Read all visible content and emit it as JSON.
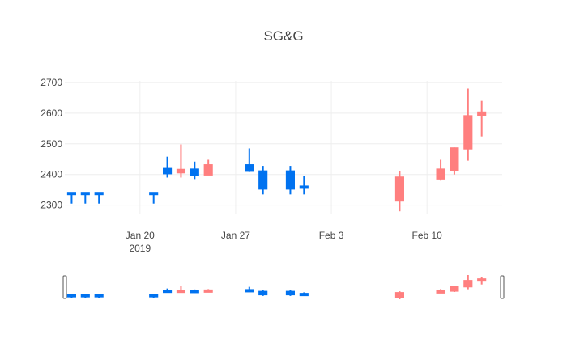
{
  "chart_data": {
    "type": "candlestick",
    "title": "SG&G",
    "xlabel": "",
    "ylabel": "",
    "ylim": [
      2270,
      2705
    ],
    "xlim": [
      "2019-01-14 12:00",
      "2019-02-15 12:00"
    ],
    "yticks": [
      2300,
      2400,
      2500,
      2600,
      2700
    ],
    "xticks": [
      {
        "date": "2019-01-20",
        "label": "Jan 20",
        "sublabel": "2019"
      },
      {
        "date": "2019-01-27",
        "label": "Jan 27",
        "sublabel": ""
      },
      {
        "date": "2019-02-03",
        "label": "Feb 3",
        "sublabel": ""
      },
      {
        "date": "2019-02-10",
        "label": "Feb 10",
        "sublabel": ""
      }
    ],
    "grid": true,
    "legend": false,
    "rangeslider": true,
    "colors": {
      "increasing": "#ff7f7f",
      "decreasing": "#0072f0",
      "grid": "#eeeeee",
      "text": "#444444"
    },
    "series": [
      {
        "date": "2019-01-15",
        "open": 2340,
        "high": 2342,
        "low": 2305,
        "close": 2336
      },
      {
        "date": "2019-01-16",
        "open": 2340,
        "high": 2342,
        "low": 2305,
        "close": 2336
      },
      {
        "date": "2019-01-17",
        "open": 2340,
        "high": 2342,
        "low": 2305,
        "close": 2336
      },
      {
        "date": "2019-01-21",
        "open": 2340,
        "high": 2342,
        "low": 2305,
        "close": 2336
      },
      {
        "date": "2019-01-22",
        "open": 2420,
        "high": 2458,
        "low": 2390,
        "close": 2402
      },
      {
        "date": "2019-01-23",
        "open": 2405,
        "high": 2498,
        "low": 2390,
        "close": 2417
      },
      {
        "date": "2019-01-24",
        "open": 2418,
        "high": 2442,
        "low": 2385,
        "close": 2397
      },
      {
        "date": "2019-01-25",
        "open": 2398,
        "high": 2448,
        "low": 2398,
        "close": 2432
      },
      {
        "date": "2019-01-28",
        "open": 2432,
        "high": 2485,
        "low": 2408,
        "close": 2410
      },
      {
        "date": "2019-01-29",
        "open": 2412,
        "high": 2428,
        "low": 2335,
        "close": 2352
      },
      {
        "date": "2019-01-31",
        "open": 2412,
        "high": 2428,
        "low": 2335,
        "close": 2352
      },
      {
        "date": "2019-02-01",
        "open": 2362,
        "high": 2394,
        "low": 2335,
        "close": 2355
      },
      {
        "date": "2019-02-08",
        "open": 2313,
        "high": 2412,
        "low": 2280,
        "close": 2392
      },
      {
        "date": "2019-02-11",
        "open": 2385,
        "high": 2448,
        "low": 2380,
        "close": 2418
      },
      {
        "date": "2019-02-12",
        "open": 2412,
        "high": 2488,
        "low": 2400,
        "close": 2487
      },
      {
        "date": "2019-02-13",
        "open": 2483,
        "high": 2680,
        "low": 2445,
        "close": 2592
      },
      {
        "date": "2019-02-14",
        "open": 2592,
        "high": 2640,
        "low": 2524,
        "close": 2604
      }
    ]
  }
}
